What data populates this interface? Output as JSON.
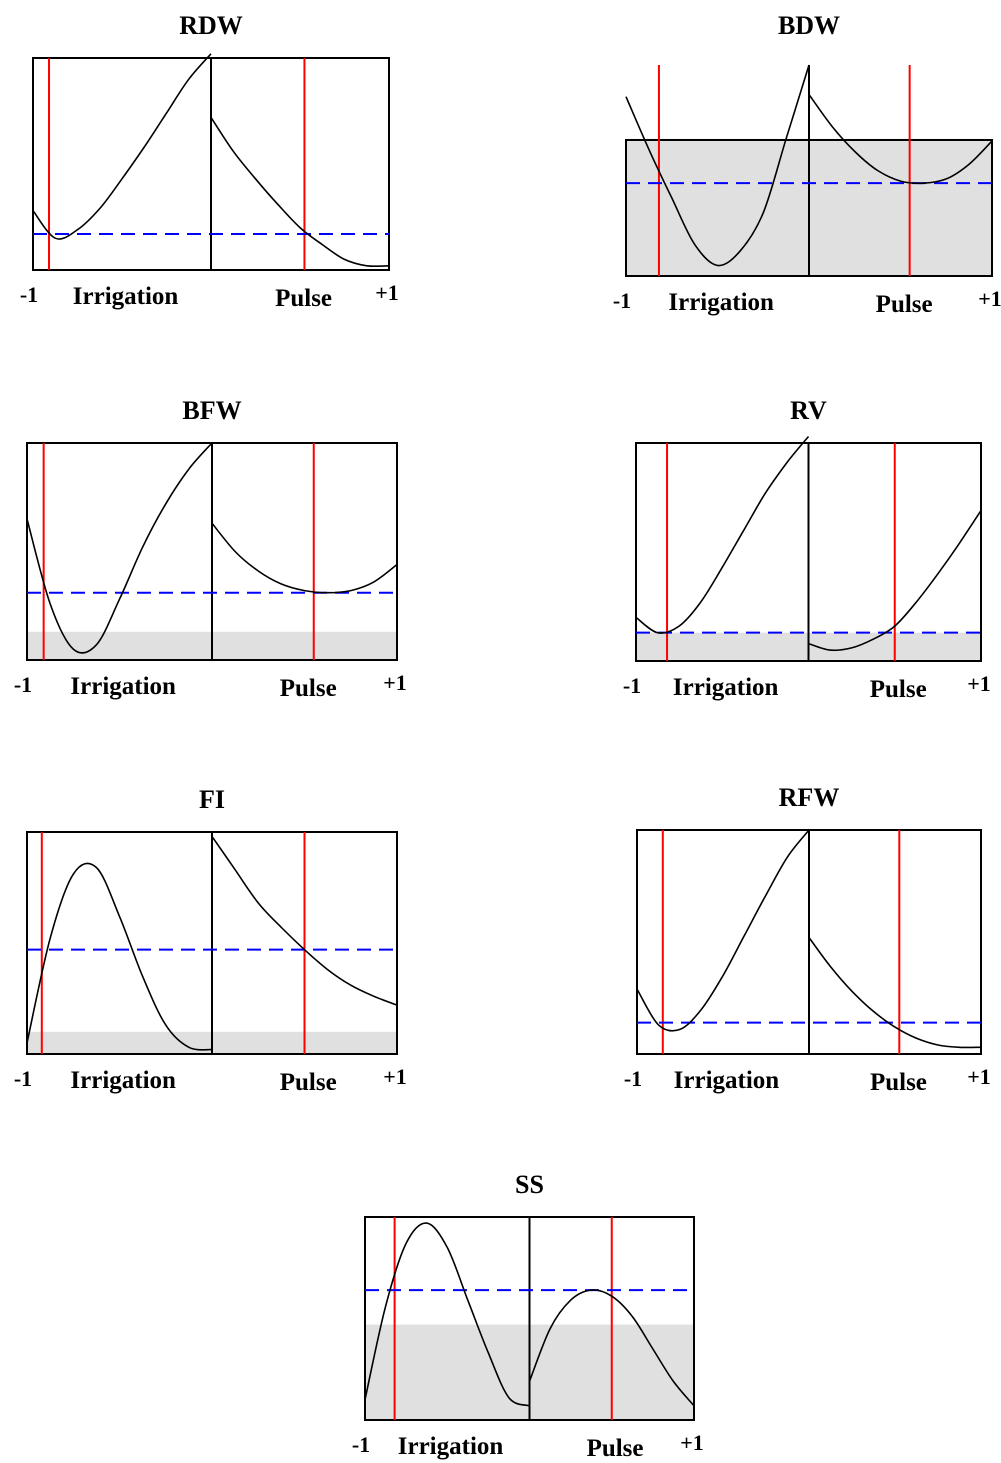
{
  "colors": {
    "frame": "#000000",
    "curve": "#000000",
    "optimum_line": "#ff0000",
    "desirability_line": "#0000ff",
    "shade": "#e0e0e0"
  },
  "chart_data": [
    {
      "type": "line",
      "title": "RDW",
      "xlabel_left": "Irrigation",
      "xlabel_right": "Pulse",
      "x_min_label": "-1",
      "x_max_label": "+1",
      "xlim": [
        -1,
        1
      ],
      "ylim": [
        0,
        1
      ],
      "shaded_below": null,
      "reference_y": 0.17,
      "optimum": {
        "Irrigation": -0.82,
        "Pulse": 0.05
      },
      "series": [
        {
          "x": [
            -1,
            -0.75,
            -0.5,
            -0.25,
            0,
            0.25,
            0.5,
            0.75,
            1
          ],
          "y": [
            0.28,
            0.15,
            0.19,
            0.29,
            0.43,
            0.58,
            0.74,
            0.9,
            1.02
          ]
        },
        {
          "x": [
            -1,
            -0.75,
            -0.5,
            -0.25,
            0,
            0.25,
            0.5,
            0.75,
            1
          ],
          "y": [
            0.72,
            0.56,
            0.43,
            0.31,
            0.2,
            0.12,
            0.05,
            0.02,
            0.02
          ]
        }
      ]
    },
    {
      "type": "line",
      "title": "BDW",
      "xlabel_left": "Irrigation",
      "xlabel_right": "Pulse",
      "x_min_label": "-1",
      "x_max_label": "+1",
      "xlim": [
        -1,
        1
      ],
      "ylim": [
        0,
        1
      ],
      "shaded_below": 0.65,
      "reference_y": 0.44,
      "optimum": {
        "Irrigation": -0.64,
        "Pulse": 0.1
      },
      "series": [
        {
          "x": [
            -1,
            -0.75,
            -0.5,
            -0.25,
            0,
            0.25,
            0.5,
            0.75,
            1
          ],
          "y": [
            0.85,
            0.6,
            0.37,
            0.15,
            0.05,
            0.12,
            0.3,
            0.65,
            1.0
          ]
        },
        {
          "x": [
            -1,
            -0.75,
            -0.5,
            -0.25,
            0,
            0.25,
            0.5,
            0.75,
            1
          ],
          "y": [
            0.86,
            0.71,
            0.59,
            0.5,
            0.45,
            0.44,
            0.46,
            0.53,
            0.64
          ]
        }
      ]
    },
    {
      "type": "line",
      "title": "BFW",
      "xlabel_left": "Irrigation",
      "xlabel_right": "Pulse",
      "x_min_label": "-1",
      "x_max_label": "+1",
      "xlim": [
        -1,
        1
      ],
      "ylim": [
        0,
        1
      ],
      "shaded_below": 0.13,
      "reference_y": 0.31,
      "optimum": {
        "Irrigation": -0.82,
        "Pulse": 0.1
      },
      "series": [
        {
          "x": [
            -1,
            -0.75,
            -0.5,
            -0.25,
            0,
            0.25,
            0.5,
            0.75,
            1
          ],
          "y": [
            0.65,
            0.26,
            0.05,
            0.07,
            0.28,
            0.52,
            0.72,
            0.88,
            1.0
          ]
        },
        {
          "x": [
            -1,
            -0.75,
            -0.5,
            -0.25,
            0,
            0.25,
            0.5,
            0.75,
            1
          ],
          "y": [
            0.63,
            0.5,
            0.41,
            0.35,
            0.32,
            0.31,
            0.32,
            0.36,
            0.44
          ]
        }
      ]
    },
    {
      "type": "line",
      "title": "RV",
      "xlabel_left": "Irrigation",
      "xlabel_right": "Pulse",
      "x_min_label": "-1",
      "x_max_label": "+1",
      "xlim": [
        -1,
        1
      ],
      "ylim": [
        0,
        1
      ],
      "shaded_below": 0.13,
      "reference_y": 0.13,
      "optimum": {
        "Irrigation": -0.64,
        "Pulse": 0.0
      },
      "series": [
        {
          "x": [
            -1,
            -0.75,
            -0.5,
            -0.25,
            0,
            0.25,
            0.5,
            0.75,
            1
          ],
          "y": [
            0.2,
            0.13,
            0.16,
            0.27,
            0.43,
            0.6,
            0.77,
            0.91,
            1.03
          ]
        },
        {
          "x": [
            -1,
            -0.75,
            -0.5,
            -0.25,
            0,
            0.25,
            0.5,
            0.75,
            1
          ],
          "y": [
            0.08,
            0.05,
            0.06,
            0.1,
            0.16,
            0.27,
            0.4,
            0.54,
            0.69
          ]
        }
      ]
    },
    {
      "type": "line",
      "title": "FI",
      "xlabel_left": "Irrigation",
      "xlabel_right": "Pulse",
      "x_min_label": "-1",
      "x_max_label": "+1",
      "xlim": [
        -1,
        1
      ],
      "ylim": [
        0,
        1
      ],
      "shaded_below": 0.1,
      "reference_y": 0.47,
      "optimum": {
        "Irrigation": -0.84,
        "Pulse": 0.0
      },
      "series": [
        {
          "x": [
            -1,
            -0.75,
            -0.5,
            -0.25,
            0,
            0.25,
            0.5,
            0.75,
            1
          ],
          "y": [
            0.05,
            0.52,
            0.81,
            0.84,
            0.62,
            0.35,
            0.13,
            0.03,
            0.02
          ]
        },
        {
          "x": [
            -1,
            -0.75,
            -0.5,
            -0.25,
            0,
            0.25,
            0.5,
            0.75,
            1
          ],
          "y": [
            0.98,
            0.83,
            0.68,
            0.57,
            0.47,
            0.38,
            0.31,
            0.26,
            0.22
          ]
        }
      ]
    },
    {
      "type": "line",
      "title": "RFW",
      "xlabel_left": "Irrigation",
      "xlabel_right": "Pulse",
      "x_min_label": "-1",
      "x_max_label": "+1",
      "xlim": [
        -1,
        1
      ],
      "ylim": [
        0,
        1
      ],
      "shaded_below": null,
      "reference_y": 0.14,
      "optimum": {
        "Irrigation": -0.7,
        "Pulse": 0.05
      },
      "series": [
        {
          "x": [
            -1,
            -0.75,
            -0.5,
            -0.25,
            0,
            0.25,
            0.5,
            0.75,
            1
          ],
          "y": [
            0.29,
            0.13,
            0.11,
            0.2,
            0.35,
            0.53,
            0.71,
            0.88,
            1.0
          ]
        },
        {
          "x": [
            -1,
            -0.75,
            -0.5,
            -0.25,
            0,
            0.25,
            0.5,
            0.75,
            1
          ],
          "y": [
            0.52,
            0.39,
            0.28,
            0.19,
            0.12,
            0.07,
            0.04,
            0.03,
            0.03
          ]
        }
      ]
    },
    {
      "type": "line",
      "title": "SS",
      "xlabel_left": "Irrigation",
      "xlabel_right": "Pulse",
      "x_min_label": "-1",
      "x_max_label": "+1",
      "xlim": [
        -1,
        1
      ],
      "ylim": [
        0,
        1
      ],
      "shaded_below": 0.47,
      "reference_y": 0.64,
      "optimum": {
        "Irrigation": -0.64,
        "Pulse": 0.0
      },
      "series": [
        {
          "x": [
            -1,
            -0.75,
            -0.5,
            -0.25,
            0,
            0.25,
            0.5,
            0.75,
            1
          ],
          "y": [
            0.1,
            0.56,
            0.87,
            0.97,
            0.85,
            0.59,
            0.33,
            0.11,
            0.07
          ]
        },
        {
          "x": [
            -1,
            -0.75,
            -0.5,
            -0.25,
            0,
            0.25,
            0.5,
            0.75,
            1
          ],
          "y": [
            0.19,
            0.45,
            0.59,
            0.64,
            0.61,
            0.51,
            0.35,
            0.19,
            0.07
          ]
        }
      ]
    }
  ]
}
